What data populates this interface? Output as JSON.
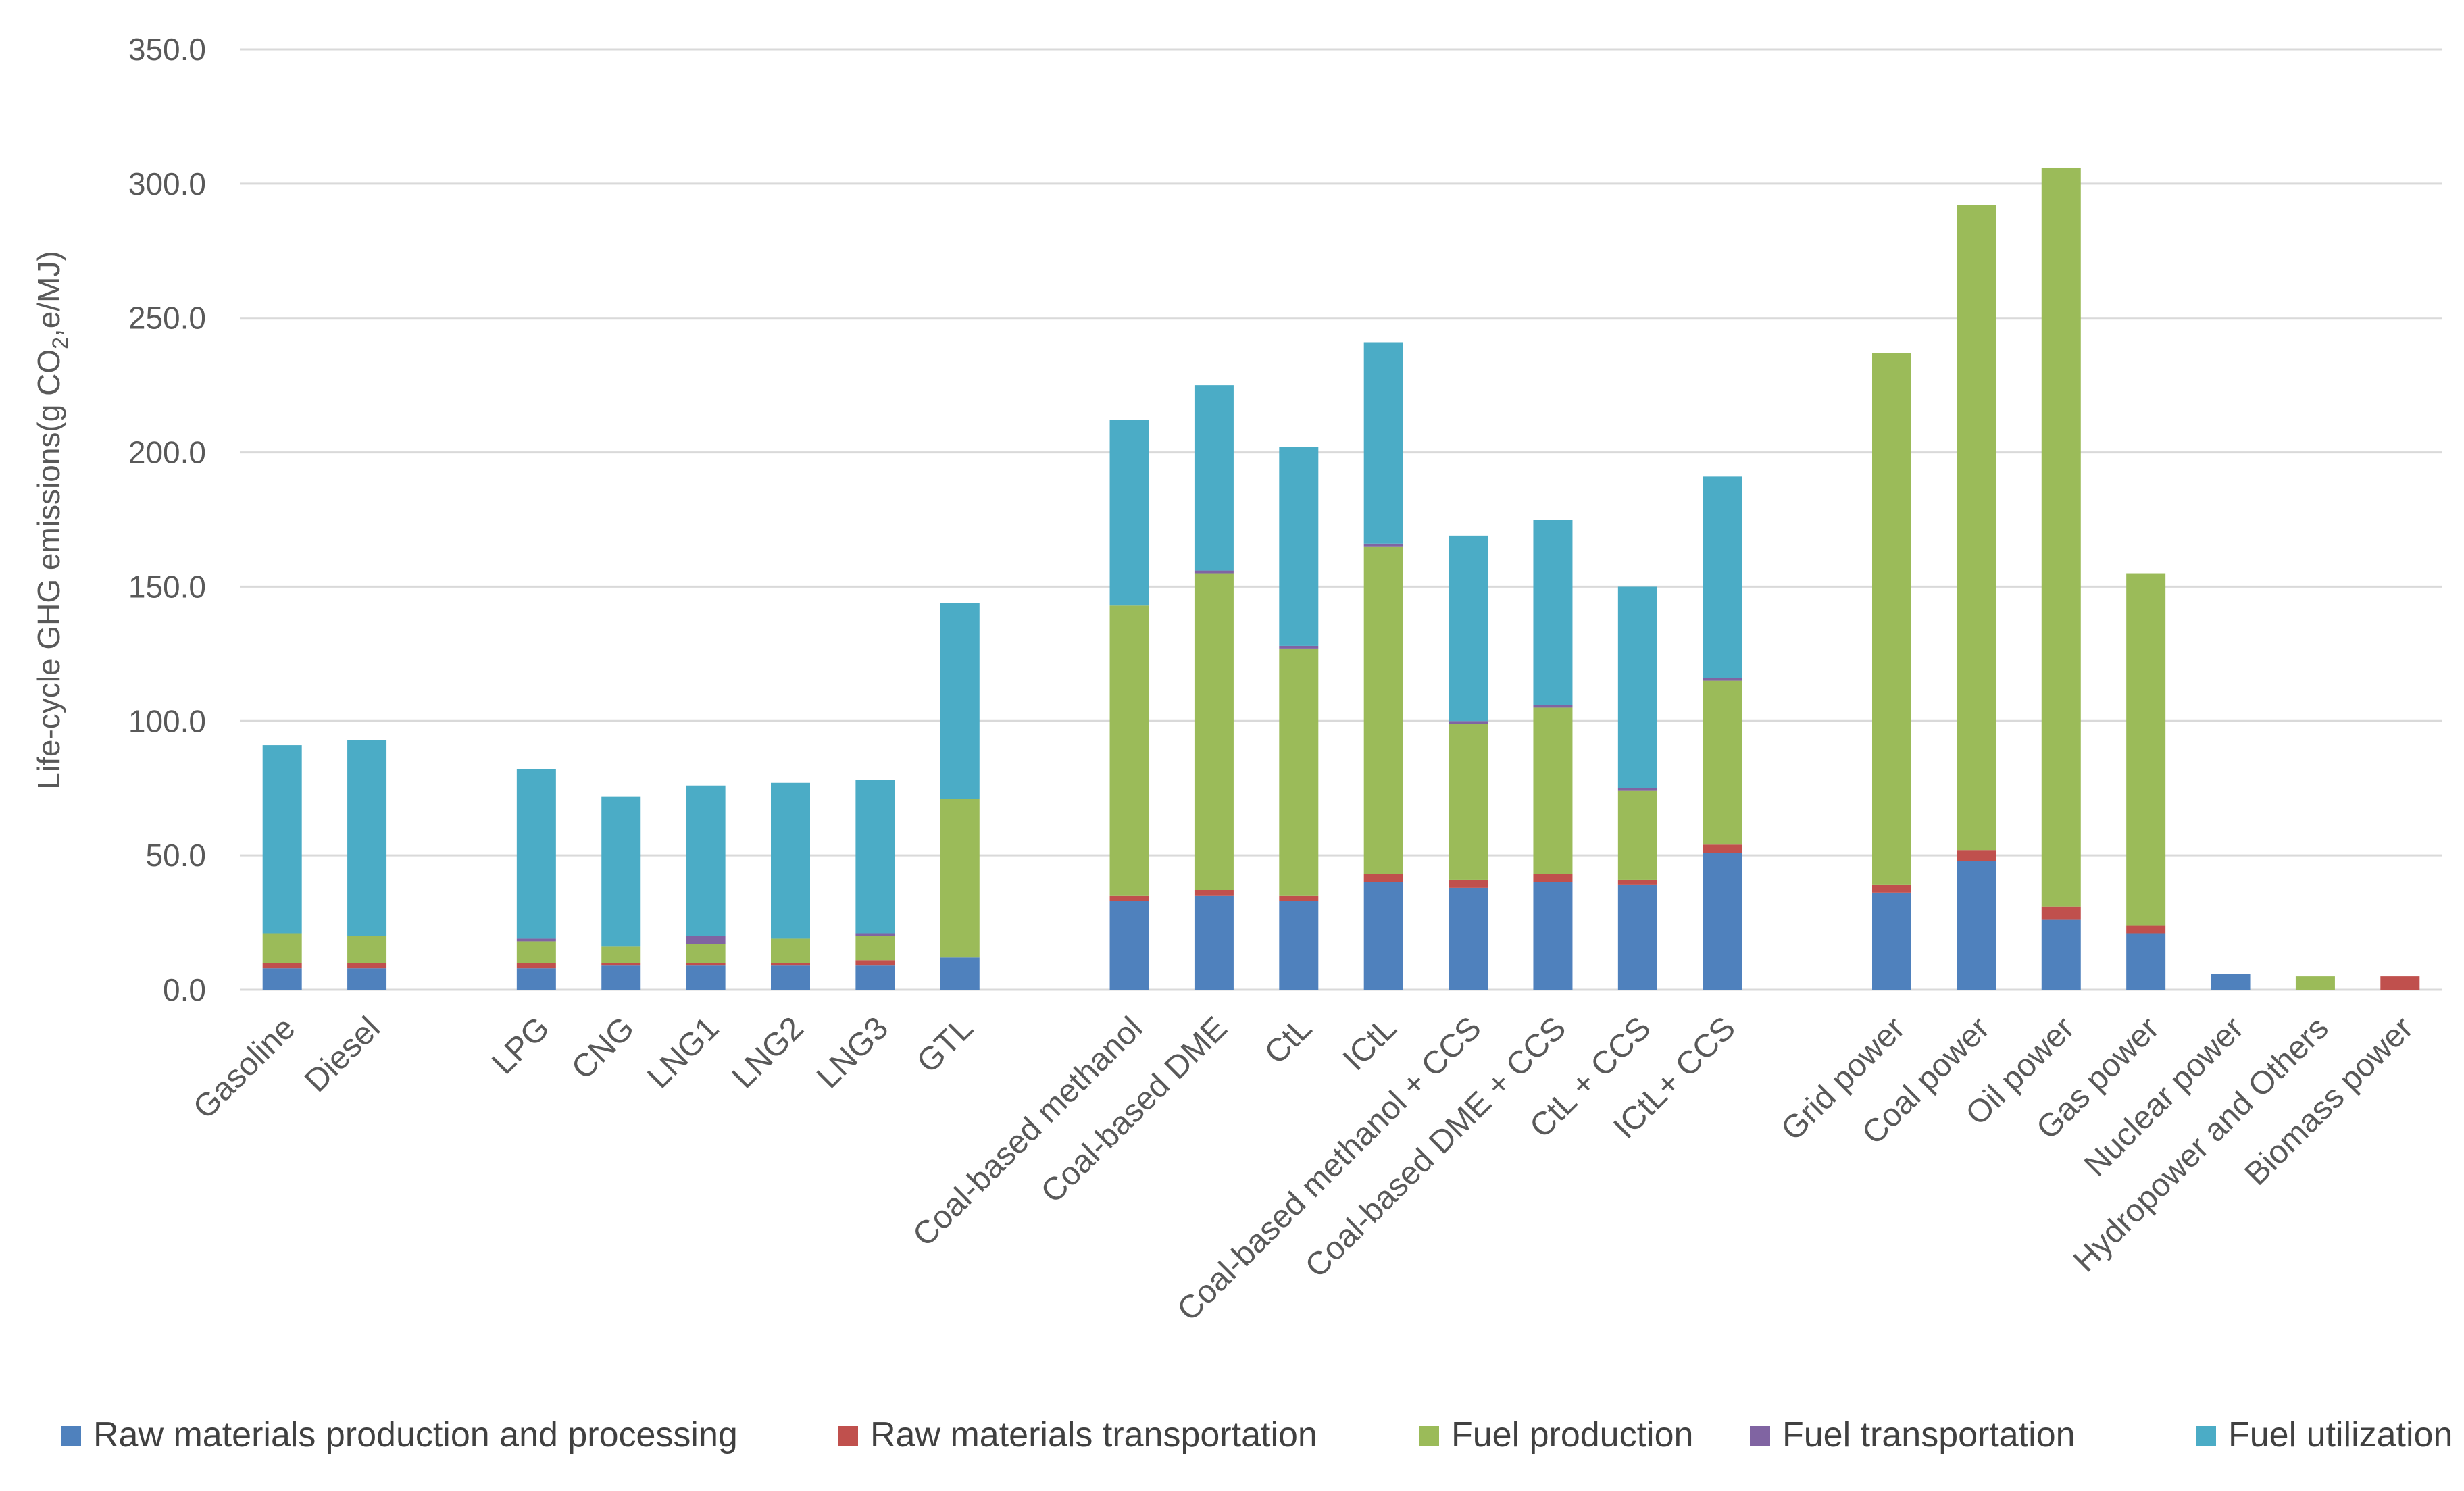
{
  "chart_data": {
    "type": "bar",
    "stacked": true,
    "title": "",
    "xlabel": "",
    "ylabel": "Life-cycle GHG emissions(g CO",
    "ylabel_sub": "2",
    "ylabel_tail": ",e/MJ)",
    "ylim": [
      0,
      350
    ],
    "yticks": [
      "0.0",
      "50.0",
      "100.0",
      "150.0",
      "200.0",
      "250.0",
      "300.0",
      "350.0"
    ],
    "grid": true,
    "legend_position": "bottom",
    "categories": [
      "Gasoline",
      "Diesel",
      "",
      "LPG",
      "CNG",
      "LNG1",
      "LNG2",
      "LNG3",
      "GTL",
      "",
      "Coal-based methanol",
      "Coal-based DME",
      "CtL",
      "ICtL",
      "Coal-based methanol + CCS",
      "Coal-based DME + CCS",
      "CtL + CCS",
      "ICtL+ CCS",
      "",
      "Grid power",
      "Coal power",
      "Oil power",
      "Gas power",
      "Nuclear power",
      "Hydropower and Others",
      "Biomass power"
    ],
    "series": [
      {
        "name": "Raw materials production and processing",
        "color": "#4f81bd",
        "values": [
          8,
          8,
          0,
          8,
          9,
          9,
          9,
          9,
          12,
          0,
          33,
          35,
          33,
          40,
          38,
          40,
          39,
          51,
          0,
          36,
          48,
          26,
          21,
          6,
          0,
          0
        ]
      },
      {
        "name": "Raw materials transportation",
        "color": "#c0504d",
        "values": [
          2,
          2,
          0,
          2,
          1,
          1,
          1,
          2,
          0,
          0,
          2,
          2,
          2,
          3,
          3,
          3,
          2,
          3,
          0,
          3,
          4,
          5,
          3,
          0,
          0,
          5
        ]
      },
      {
        "name": "Fuel production",
        "color": "#9bbb59",
        "values": [
          11,
          10,
          0,
          8,
          6,
          7,
          9,
          9,
          59,
          0,
          108,
          118,
          92,
          122,
          58,
          62,
          33,
          61,
          0,
          198,
          240,
          275,
          131,
          0,
          5,
          0
        ]
      },
      {
        "name": "Fuel transportation",
        "color": "#8064a2",
        "values": [
          0,
          0,
          0,
          1,
          0,
          3,
          0,
          1,
          0,
          0,
          0,
          1,
          1,
          1,
          1,
          1,
          1,
          1,
          0,
          0,
          0,
          0,
          0,
          0,
          0,
          0
        ]
      },
      {
        "name": "Fuel utilization",
        "color": "#4bacc6",
        "values": [
          70,
          73,
          0,
          63,
          56,
          56,
          58,
          57,
          73,
          0,
          69,
          69,
          74,
          75,
          69,
          69,
          75,
          75,
          0,
          0,
          0,
          0,
          0,
          0,
          0,
          0
        ]
      }
    ]
  }
}
